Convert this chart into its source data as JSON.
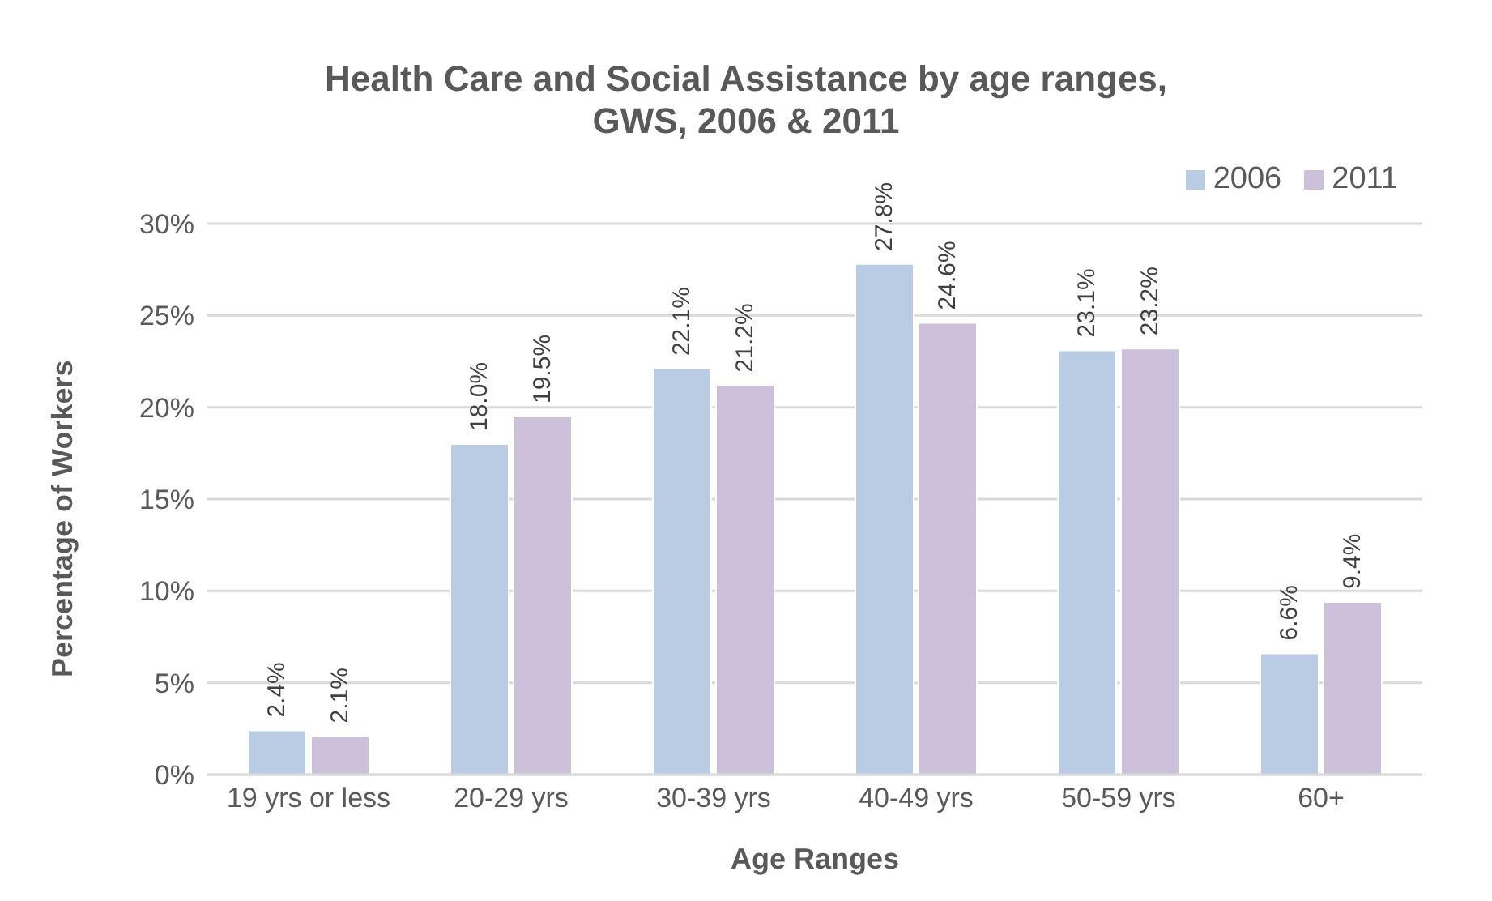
{
  "chart_data": {
    "type": "bar",
    "title": "Health Care and Social Assistance by age ranges, GWS, 2006 & 2011",
    "xlabel": "Age Ranges",
    "ylabel": "Percentage of Workers",
    "categories": [
      "19 yrs or less",
      "20-29 yrs",
      "30-39 yrs",
      "40-49 yrs",
      "50-59 yrs",
      "60+"
    ],
    "series": [
      {
        "name": "2006",
        "color": "#b9cce4",
        "values": [
          2.4,
          18.0,
          22.1,
          27.8,
          23.1,
          6.6
        ],
        "value_labels": [
          "2.4%",
          "18.0%",
          "22.1%",
          "27.8%",
          "23.1%",
          "6.6%"
        ]
      },
      {
        "name": "2011",
        "color": "#ccc0da",
        "values": [
          2.1,
          19.5,
          21.2,
          24.6,
          23.2,
          9.4
        ],
        "value_labels": [
          "2.1%",
          "19.5%",
          "21.2%",
          "24.6%",
          "23.2%",
          "9.4%"
        ]
      }
    ],
    "ylim": [
      0,
      30
    ],
    "yticks": [
      {
        "value": 0,
        "label": "0%"
      },
      {
        "value": 5,
        "label": "5%"
      },
      {
        "value": 10,
        "label": "10%"
      },
      {
        "value": 15,
        "label": "15%"
      },
      {
        "value": 20,
        "label": "20%"
      },
      {
        "value": 25,
        "label": "25%"
      },
      {
        "value": 30,
        "label": "30%"
      }
    ],
    "grid": "y",
    "legend": "top right"
  }
}
